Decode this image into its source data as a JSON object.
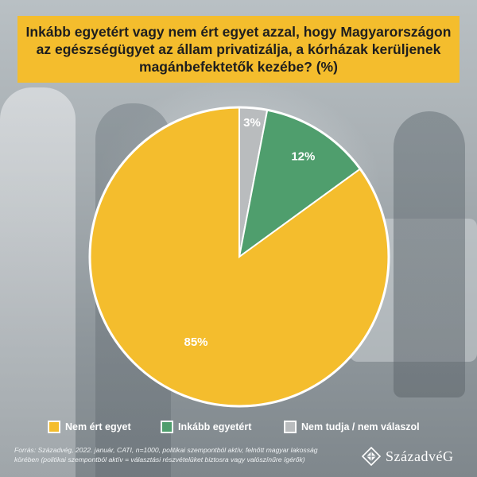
{
  "title": "Inkább egyetért vagy nem ért egyet azzal, hogy Magyarországon\naz egészségügyet az állam privatizálja, a kórházak kerüljenek\nmagánbefektetők kezébe? (%)",
  "chart_data": {
    "type": "pie",
    "title": "Inkább egyetért vagy nem ért egyet azzal, hogy Magyarországon az egészségügyet az állam privatizálja, a kórházak kerüljenek magánbefektetők kezébe? (%)",
    "slices": [
      {
        "label": "Nem tudja / nem válaszol",
        "value": 3,
        "display": "3%",
        "color": "#b9bcbe"
      },
      {
        "label": "Inkább egyetért",
        "value": 12,
        "display": "12%",
        "color": "#4f9e6d"
      },
      {
        "label": "Nem ért egyet",
        "value": 85,
        "display": "85%",
        "color": "#f4bd2d"
      }
    ],
    "start_angle_deg": 0,
    "direction": "clockwise",
    "legend_position": "bottom"
  },
  "legend": [
    {
      "label": "Nem ért egyet",
      "color": "#f4bd2d"
    },
    {
      "label": "Inkább egyetért",
      "color": "#4f9e6d"
    },
    {
      "label": "Nem tudja / nem válaszol",
      "color": "#b9bcbe"
    }
  ],
  "source": "Forrás: Századvég, 2022. január, CATI, n=1000, politikai szempontból aktív, felnőtt magyar lakosság körében (politikai szempontból aktív = választási részvételüket biztosra vagy valószínűre ígérők)",
  "logo": {
    "text": "SzázadvéG",
    "icon": "diamond-logo-icon"
  }
}
